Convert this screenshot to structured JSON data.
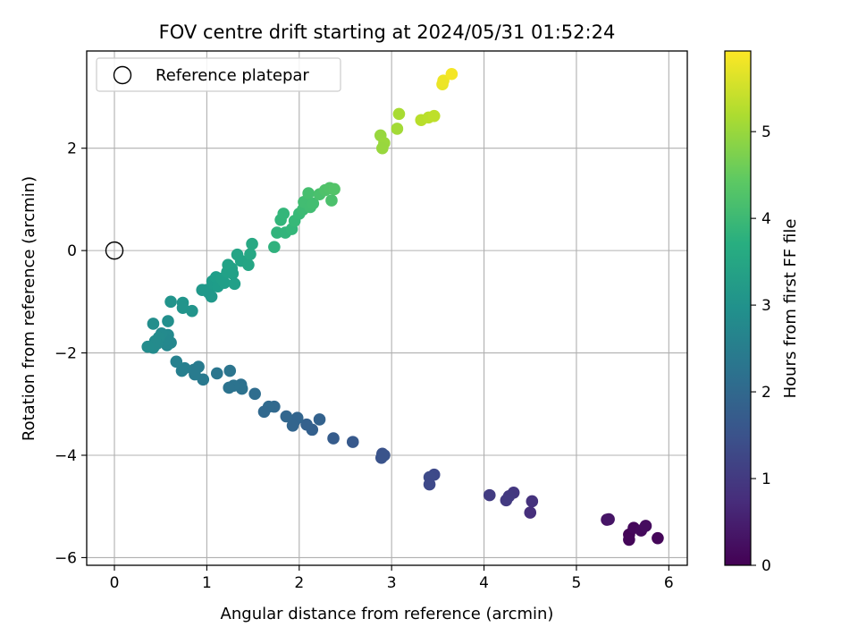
{
  "chart_data": {
    "type": "scatter",
    "title": "FOV centre drift starting at 2024/05/31 01:52:24",
    "xlabel": "Angular distance from reference (arcmin)",
    "ylabel": "Rotation from reference (arcmin)",
    "xlim": [
      -0.3,
      6.2
    ],
    "ylim": [
      -6.15,
      3.9
    ],
    "xticks": [
      0,
      1,
      2,
      3,
      4,
      5,
      6
    ],
    "yticks": [
      -6,
      -4,
      -2,
      0,
      2
    ],
    "grid": true,
    "legend": {
      "placement": "top-left",
      "entries": [
        {
          "label": "Reference platepar",
          "marker": "open-circle",
          "x": 0,
          "y": 0
        }
      ]
    },
    "colorbar": {
      "label": "Hours from first FF file",
      "colormap": "viridis",
      "range": [
        0,
        5.93
      ],
      "ticks": [
        0,
        1,
        2,
        3,
        4,
        5
      ]
    },
    "series": [
      {
        "points": [
          {
            "x": 5.57,
            "y": -5.55,
            "c": 0.05
          },
          {
            "x": 5.57,
            "y": -5.65,
            "c": 0.08
          },
          {
            "x": 5.62,
            "y": -5.42,
            "c": 0.12
          },
          {
            "x": 5.7,
            "y": -5.47,
            "c": 0.15
          },
          {
            "x": 5.75,
            "y": -5.38,
            "c": 0.18
          },
          {
            "x": 5.88,
            "y": -5.62,
            "c": 0.1
          },
          {
            "x": 5.33,
            "y": -5.26,
            "c": 0.3
          },
          {
            "x": 5.35,
            "y": -5.25,
            "c": 0.33
          },
          {
            "x": 4.52,
            "y": -4.9,
            "c": 0.85
          },
          {
            "x": 4.5,
            "y": -5.12,
            "c": 0.8
          },
          {
            "x": 4.32,
            "y": -4.73,
            "c": 0.95
          },
          {
            "x": 4.27,
            "y": -4.8,
            "c": 0.98
          },
          {
            "x": 4.24,
            "y": -4.88,
            "c": 1.0
          },
          {
            "x": 4.06,
            "y": -4.78,
            "c": 1.05
          },
          {
            "x": 3.46,
            "y": -4.38,
            "c": 1.3
          },
          {
            "x": 3.41,
            "y": -4.43,
            "c": 1.33
          },
          {
            "x": 3.41,
            "y": -4.57,
            "c": 1.3
          },
          {
            "x": 2.9,
            "y": -3.97,
            "c": 1.5
          },
          {
            "x": 2.89,
            "y": -4.05,
            "c": 1.52
          },
          {
            "x": 2.92,
            "y": -4.0,
            "c": 1.53
          },
          {
            "x": 2.58,
            "y": -3.74,
            "c": 1.65
          },
          {
            "x": 2.37,
            "y": -3.67,
            "c": 1.72
          },
          {
            "x": 2.22,
            "y": -3.3,
            "c": 1.85
          },
          {
            "x": 2.14,
            "y": -3.5,
            "c": 1.8
          },
          {
            "x": 2.08,
            "y": -3.4,
            "c": 1.83
          },
          {
            "x": 1.98,
            "y": -3.27,
            "c": 1.9
          },
          {
            "x": 1.95,
            "y": -3.33,
            "c": 1.92
          },
          {
            "x": 1.93,
            "y": -3.42,
            "c": 1.9
          },
          {
            "x": 1.86,
            "y": -3.24,
            "c": 1.95
          },
          {
            "x": 1.73,
            "y": -3.05,
            "c": 2.0
          },
          {
            "x": 1.67,
            "y": -3.05,
            "c": 2.02
          },
          {
            "x": 1.62,
            "y": -3.15,
            "c": 2.0
          },
          {
            "x": 1.52,
            "y": -2.8,
            "c": 2.1
          },
          {
            "x": 1.37,
            "y": -2.62,
            "c": 2.2
          },
          {
            "x": 1.38,
            "y": -2.7,
            "c": 2.22
          },
          {
            "x": 1.29,
            "y": -2.64,
            "c": 2.25
          },
          {
            "x": 1.24,
            "y": -2.68,
            "c": 2.25
          },
          {
            "x": 1.25,
            "y": -2.35,
            "c": 2.3
          },
          {
            "x": 1.11,
            "y": -2.4,
            "c": 2.33
          },
          {
            "x": 0.96,
            "y": -2.52,
            "c": 2.4
          },
          {
            "x": 0.91,
            "y": -2.27,
            "c": 2.45
          },
          {
            "x": 0.87,
            "y": -2.42,
            "c": 2.45
          },
          {
            "x": 0.86,
            "y": -2.33,
            "c": 2.47
          },
          {
            "x": 0.76,
            "y": -2.3,
            "c": 2.55
          },
          {
            "x": 0.73,
            "y": -2.35,
            "c": 2.55
          },
          {
            "x": 0.67,
            "y": -2.17,
            "c": 2.6
          },
          {
            "x": 0.61,
            "y": -1.8,
            "c": 2.75
          },
          {
            "x": 0.57,
            "y": -1.85,
            "c": 2.75
          },
          {
            "x": 0.58,
            "y": -1.65,
            "c": 2.8
          },
          {
            "x": 0.55,
            "y": -1.75,
            "c": 2.78
          },
          {
            "x": 0.51,
            "y": -1.62,
            "c": 2.82
          },
          {
            "x": 0.48,
            "y": -1.7,
            "c": 2.85
          },
          {
            "x": 0.46,
            "y": -1.82,
            "c": 2.82
          },
          {
            "x": 0.44,
            "y": -1.77,
            "c": 2.85
          },
          {
            "x": 0.42,
            "y": -1.9,
            "c": 2.85
          },
          {
            "x": 0.36,
            "y": -1.88,
            "c": 2.88
          },
          {
            "x": 0.58,
            "y": -1.38,
            "c": 2.95
          },
          {
            "x": 0.42,
            "y": -1.43,
            "c": 2.92
          },
          {
            "x": 0.61,
            "y": -1.0,
            "c": 3.05
          },
          {
            "x": 0.74,
            "y": -1.02,
            "c": 3.08
          },
          {
            "x": 0.74,
            "y": -1.12,
            "c": 3.05
          },
          {
            "x": 0.84,
            "y": -1.18,
            "c": 3.05
          },
          {
            "x": 0.95,
            "y": -0.77,
            "c": 3.15
          },
          {
            "x": 1.0,
            "y": -0.77,
            "c": 3.18
          },
          {
            "x": 1.02,
            "y": -0.82,
            "c": 3.18
          },
          {
            "x": 1.05,
            "y": -0.9,
            "c": 3.15
          },
          {
            "x": 1.06,
            "y": -0.6,
            "c": 3.25
          },
          {
            "x": 1.08,
            "y": -0.66,
            "c": 3.25
          },
          {
            "x": 1.1,
            "y": -0.52,
            "c": 3.3
          },
          {
            "x": 1.12,
            "y": -0.7,
            "c": 3.28
          },
          {
            "x": 1.16,
            "y": -0.55,
            "c": 3.32
          },
          {
            "x": 1.19,
            "y": -0.63,
            "c": 3.32
          },
          {
            "x": 1.22,
            "y": -0.42,
            "c": 3.38
          },
          {
            "x": 1.23,
            "y": -0.28,
            "c": 3.4
          },
          {
            "x": 1.27,
            "y": -0.35,
            "c": 3.4
          },
          {
            "x": 1.28,
            "y": -0.45,
            "c": 3.38
          },
          {
            "x": 1.3,
            "y": -0.65,
            "c": 3.35
          },
          {
            "x": 1.33,
            "y": -0.08,
            "c": 3.45
          },
          {
            "x": 1.37,
            "y": -0.2,
            "c": 3.45
          },
          {
            "x": 1.45,
            "y": -0.28,
            "c": 3.48
          },
          {
            "x": 1.47,
            "y": -0.07,
            "c": 3.52
          },
          {
            "x": 1.49,
            "y": 0.13,
            "c": 3.55
          },
          {
            "x": 1.73,
            "y": 0.07,
            "c": 3.8
          },
          {
            "x": 1.76,
            "y": 0.35,
            "c": 3.85
          },
          {
            "x": 1.8,
            "y": 0.6,
            "c": 3.9
          },
          {
            "x": 1.83,
            "y": 0.72,
            "c": 3.92
          },
          {
            "x": 1.85,
            "y": 0.35,
            "c": 3.88
          },
          {
            "x": 1.92,
            "y": 0.42,
            "c": 3.92
          },
          {
            "x": 1.95,
            "y": 0.58,
            "c": 3.98
          },
          {
            "x": 2.0,
            "y": 0.72,
            "c": 4.0
          },
          {
            "x": 2.04,
            "y": 0.8,
            "c": 4.05
          },
          {
            "x": 2.05,
            "y": 0.95,
            "c": 4.1
          },
          {
            "x": 2.1,
            "y": 1.12,
            "c": 4.15
          },
          {
            "x": 2.12,
            "y": 0.85,
            "c": 4.1
          },
          {
            "x": 2.15,
            "y": 0.92,
            "c": 4.12
          },
          {
            "x": 2.22,
            "y": 1.1,
            "c": 4.2
          },
          {
            "x": 2.28,
            "y": 1.18,
            "c": 4.25
          },
          {
            "x": 2.33,
            "y": 1.22,
            "c": 4.28
          },
          {
            "x": 2.35,
            "y": 0.98,
            "c": 4.22
          },
          {
            "x": 2.38,
            "y": 1.2,
            "c": 4.3
          },
          {
            "x": 2.88,
            "y": 2.25,
            "c": 5.0
          },
          {
            "x": 2.92,
            "y": 2.1,
            "c": 5.02
          },
          {
            "x": 2.9,
            "y": 2.0,
            "c": 5.0
          },
          {
            "x": 3.06,
            "y": 2.38,
            "c": 5.1
          },
          {
            "x": 3.08,
            "y": 2.67,
            "c": 5.15
          },
          {
            "x": 3.32,
            "y": 2.55,
            "c": 5.3
          },
          {
            "x": 3.4,
            "y": 2.6,
            "c": 5.32
          },
          {
            "x": 3.46,
            "y": 2.63,
            "c": 5.35
          },
          {
            "x": 3.55,
            "y": 3.25,
            "c": 5.75
          },
          {
            "x": 3.56,
            "y": 3.32,
            "c": 5.78
          },
          {
            "x": 3.65,
            "y": 3.45,
            "c": 5.85
          }
        ]
      }
    ]
  }
}
